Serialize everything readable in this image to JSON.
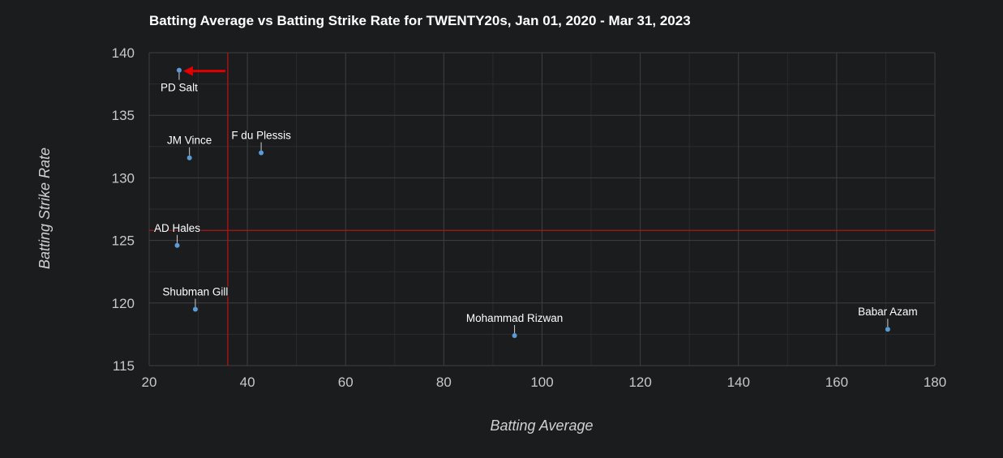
{
  "chart_data": {
    "type": "scatter",
    "title": "Batting Average vs Batting Strike Rate for TWENTY20s, Jan 01, 2020 - Mar 31, 2023",
    "xlabel": "Batting Average",
    "ylabel": "Batting Strike Rate",
    "xlim": [
      20,
      180
    ],
    "ylim": [
      115,
      140
    ],
    "xticks": [
      "20",
      "40",
      "60",
      "80",
      "100",
      "120",
      "140",
      "160",
      "180"
    ],
    "yticks": [
      "115",
      "120",
      "125",
      "130",
      "135",
      "140"
    ],
    "grid": true,
    "reference_lines": {
      "x": 36,
      "y": 125.8
    },
    "points": [
      {
        "label": "PD Salt",
        "x": 26.1,
        "y": 138.6,
        "highlighted": true
      },
      {
        "label": "JM Vince",
        "x": 28.2,
        "y": 131.6
      },
      {
        "label": "F du Plessis",
        "x": 42.8,
        "y": 132.0
      },
      {
        "label": "AD Hales",
        "x": 25.7,
        "y": 124.6
      },
      {
        "label": "Shubman Gill",
        "x": 29.4,
        "y": 119.5
      },
      {
        "label": "Mohammad Rizwan",
        "x": 94.4,
        "y": 117.4
      },
      {
        "label": "Babar Azam",
        "x": 170.4,
        "y": 117.9
      }
    ],
    "colors": {
      "point": "#5b9bd5",
      "reference_line": "#b01515",
      "arrow": "#e00000",
      "grid": "#3e3f42",
      "minor_grid": "#2b2c2f"
    }
  }
}
